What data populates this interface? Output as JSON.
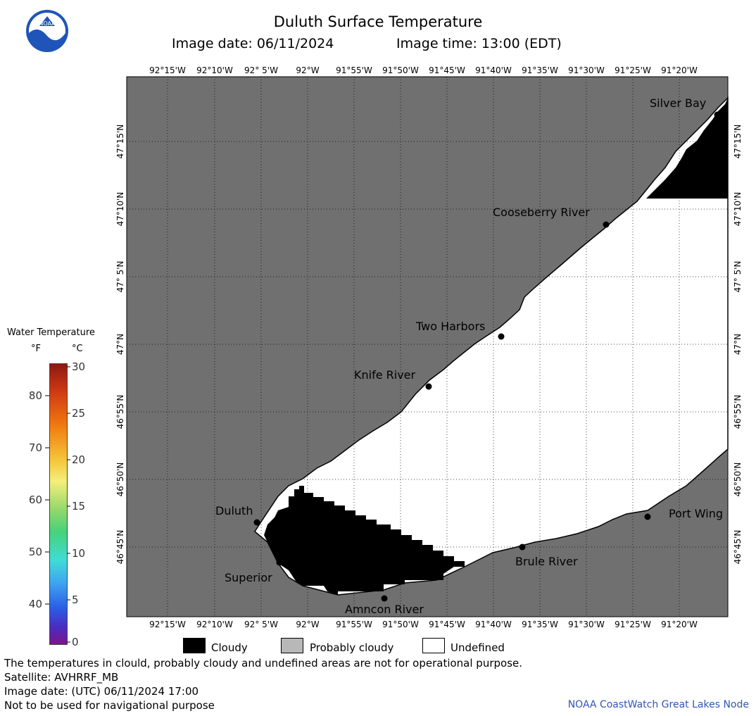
{
  "header": {
    "title": "Duluth Surface Temperature",
    "image_date": "Image date: 06/11/2024",
    "image_time": "Image time: 13:00 (EDT)",
    "logo_text": "NOAA"
  },
  "map": {
    "lon_labels": [
      "92°15'W",
      "92°10'W",
      "92° 5'W",
      "92°W",
      "91°55'W",
      "91°50'W",
      "91°45'W",
      "91°40'W",
      "91°35'W",
      "91°30'W",
      "91°25'W",
      "91°20'W"
    ],
    "lat_labels": [
      "47°15'N",
      "47°10'N",
      "47° 5'N",
      "47°N",
      "46°55'N",
      "46°50'N",
      "46°45'N"
    ],
    "places": [
      {
        "name": "Silver Bay"
      },
      {
        "name": "Cooseberry River"
      },
      {
        "name": "Two Harbors"
      },
      {
        "name": "Knife River"
      },
      {
        "name": "Duluth"
      },
      {
        "name": "Superior"
      },
      {
        "name": "Amncon River"
      },
      {
        "name": "Brule River"
      },
      {
        "name": "Port Wing"
      }
    ],
    "colors": {
      "land": "#707070",
      "cloudy": "#000000",
      "undefined": "#ffffff",
      "grid": "#000000"
    }
  },
  "colorbar": {
    "title": "Water Temperature",
    "unit_f": "°F",
    "unit_c": "°C",
    "f_ticks": [
      "80",
      "70",
      "60",
      "50",
      "40"
    ],
    "c_ticks": [
      "30",
      "25",
      "20",
      "15",
      "10",
      "5",
      "0"
    ]
  },
  "legend": {
    "cloudy": "Cloudy",
    "probably_cloudy": "Probably cloudy",
    "undefined": "Undefined",
    "colors": {
      "cloudy": "#000000",
      "probably_cloudy": "#b8b8b8",
      "undefined": "#ffffff"
    }
  },
  "footer": {
    "line1": "The temperatures in clould, probably cloudy and undefined areas are not for operational purpose.",
    "line2": "Satellite: AVHRRF_MB",
    "line3": "Image date: (UTC) 06/11/2024  17:00",
    "line4": "Not to be used for navigational purpose",
    "credit": "NOAA CoastWatch Great Lakes Node"
  }
}
